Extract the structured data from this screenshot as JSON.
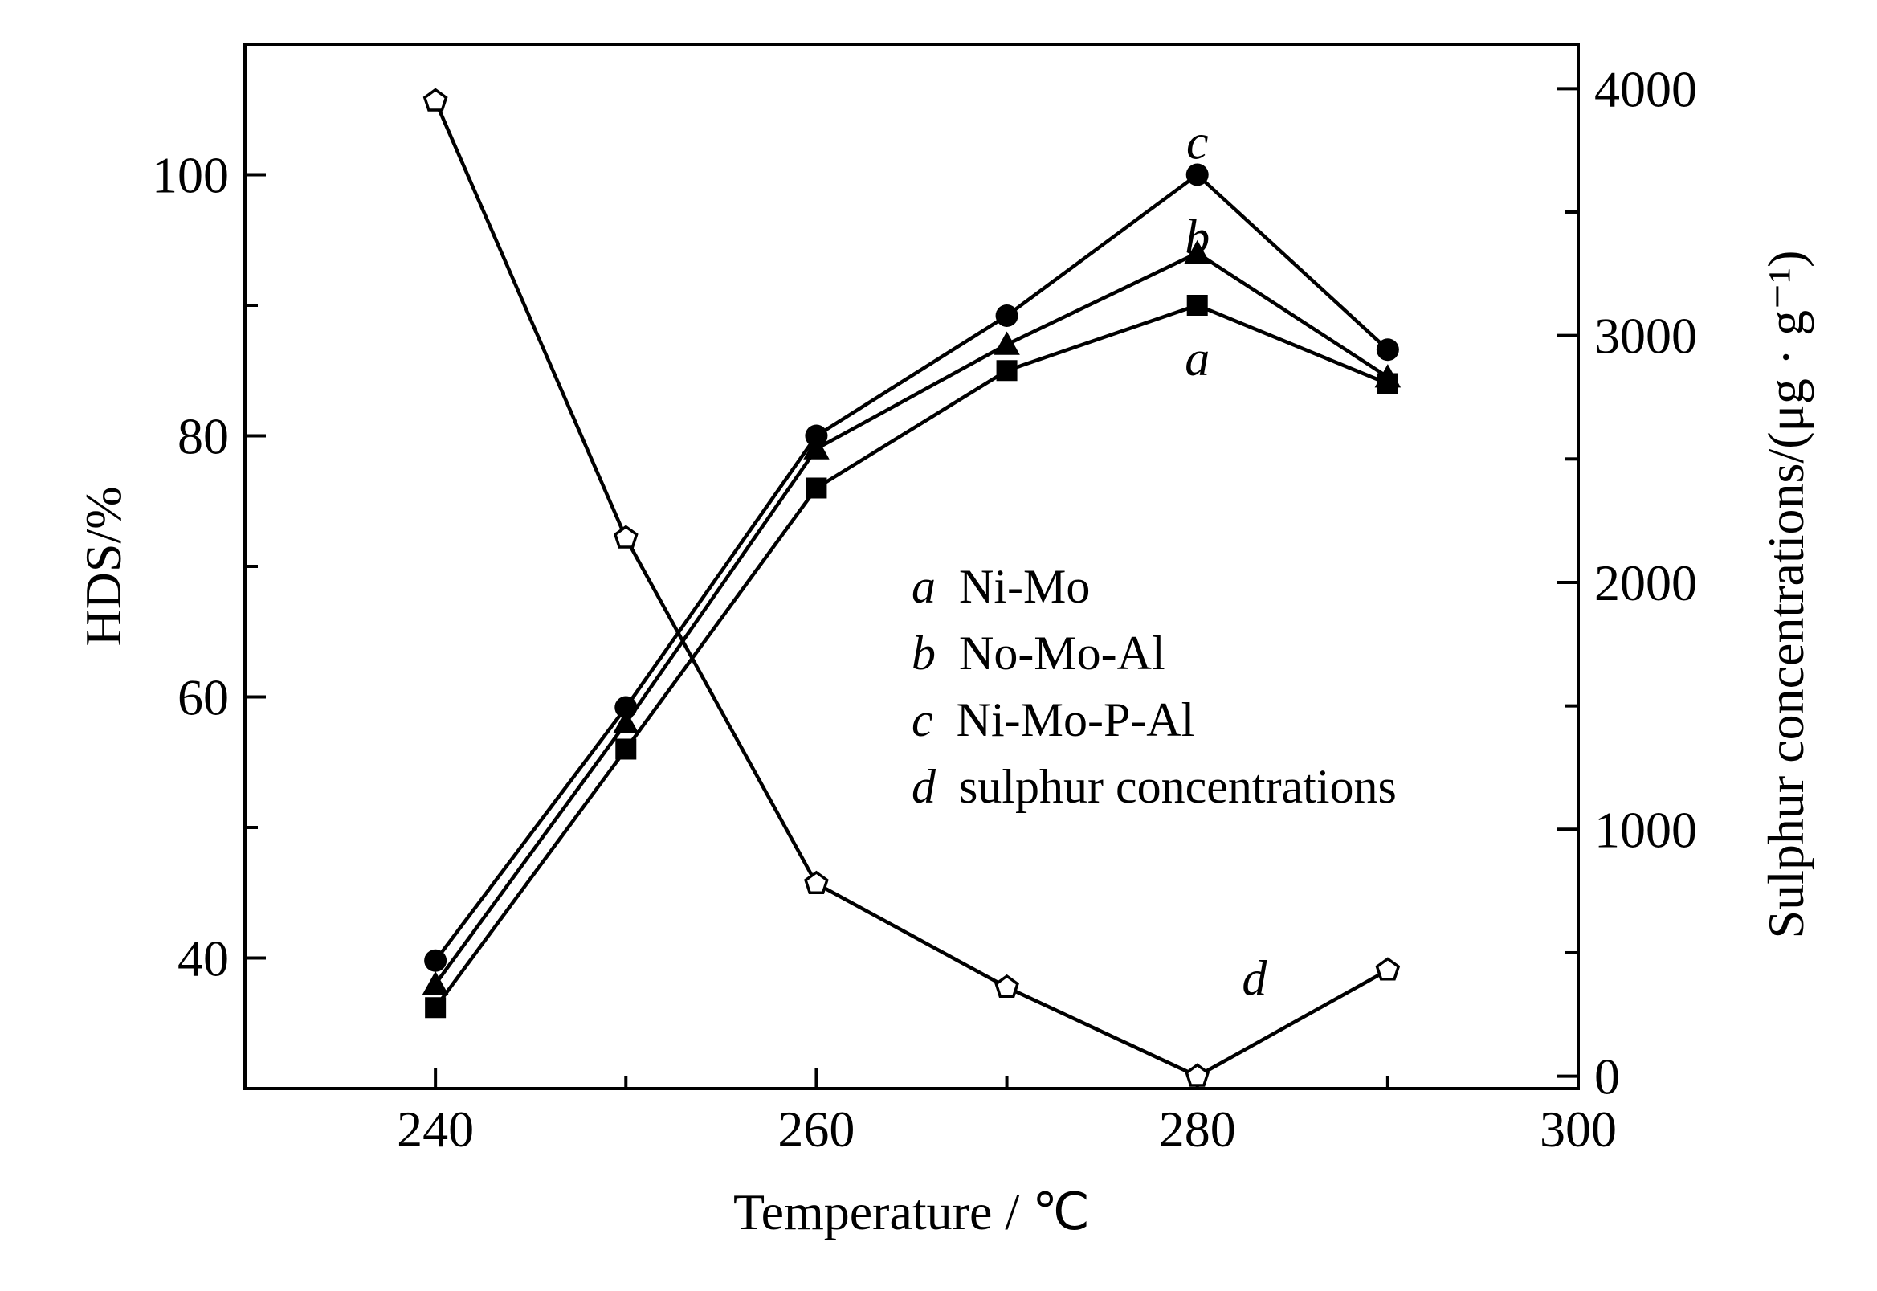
{
  "chart_data": {
    "type": "line",
    "xlabel": "Temperature / ℃",
    "ylabel_left": "HDS/%",
    "ylabel_right": "Sulphur concentrations/(μg · g⁻¹)",
    "xlim": [
      230,
      300
    ],
    "ylim_left": [
      30,
      110
    ],
    "ylim_right": [
      -50,
      4180
    ],
    "x_ticks": [
      240,
      260,
      280,
      300
    ],
    "x_minor_ticks": [
      250,
      270,
      290
    ],
    "y_left_ticks": [
      40,
      60,
      80,
      100
    ],
    "y_left_minor_ticks": [
      50,
      70,
      90
    ],
    "y_right_ticks": [
      0,
      1000,
      2000,
      3000,
      4000
    ],
    "y_right_minor_ticks": [
      500,
      1500,
      2500,
      3500
    ],
    "grid": false,
    "legend_position": "center-right",
    "legend": [
      {
        "letter": "a",
        "text": "Ni-Mo"
      },
      {
        "letter": "b",
        "text": "No-Mo-Al"
      },
      {
        "letter": "c",
        "text": "Ni-Mo-P-Al"
      },
      {
        "letter": "d",
        "text": "sulphur concentrations"
      }
    ],
    "series": [
      {
        "letter": "a",
        "axis": "left",
        "marker": "square-filled",
        "x": [
          240,
          250,
          260,
          270,
          280,
          290
        ],
        "y": [
          36.2,
          56.0,
          76.0,
          85.0,
          90.0,
          84.0
        ],
        "label_at": [
          280,
          86.0
        ]
      },
      {
        "letter": "b",
        "axis": "left",
        "marker": "triangle-filled",
        "x": [
          240,
          250,
          260,
          270,
          280,
          290
        ],
        "y": [
          38.0,
          58.0,
          79.0,
          87.0,
          94.0,
          84.5
        ],
        "label_at": [
          280,
          95.3
        ]
      },
      {
        "letter": "c",
        "axis": "left",
        "marker": "circle-filled",
        "x": [
          240,
          250,
          260,
          270,
          280,
          290
        ],
        "y": [
          39.8,
          59.2,
          80.0,
          89.2,
          100.0,
          86.6
        ],
        "label_at": [
          280,
          102.6
        ]
      },
      {
        "letter": "d",
        "axis": "right",
        "marker": "pentagon-open",
        "x": [
          240,
          250,
          260,
          270,
          280,
          290
        ],
        "y": [
          3950,
          2180,
          780,
          360,
          0,
          430
        ],
        "label_at": [
          283,
          400
        ]
      }
    ]
  }
}
